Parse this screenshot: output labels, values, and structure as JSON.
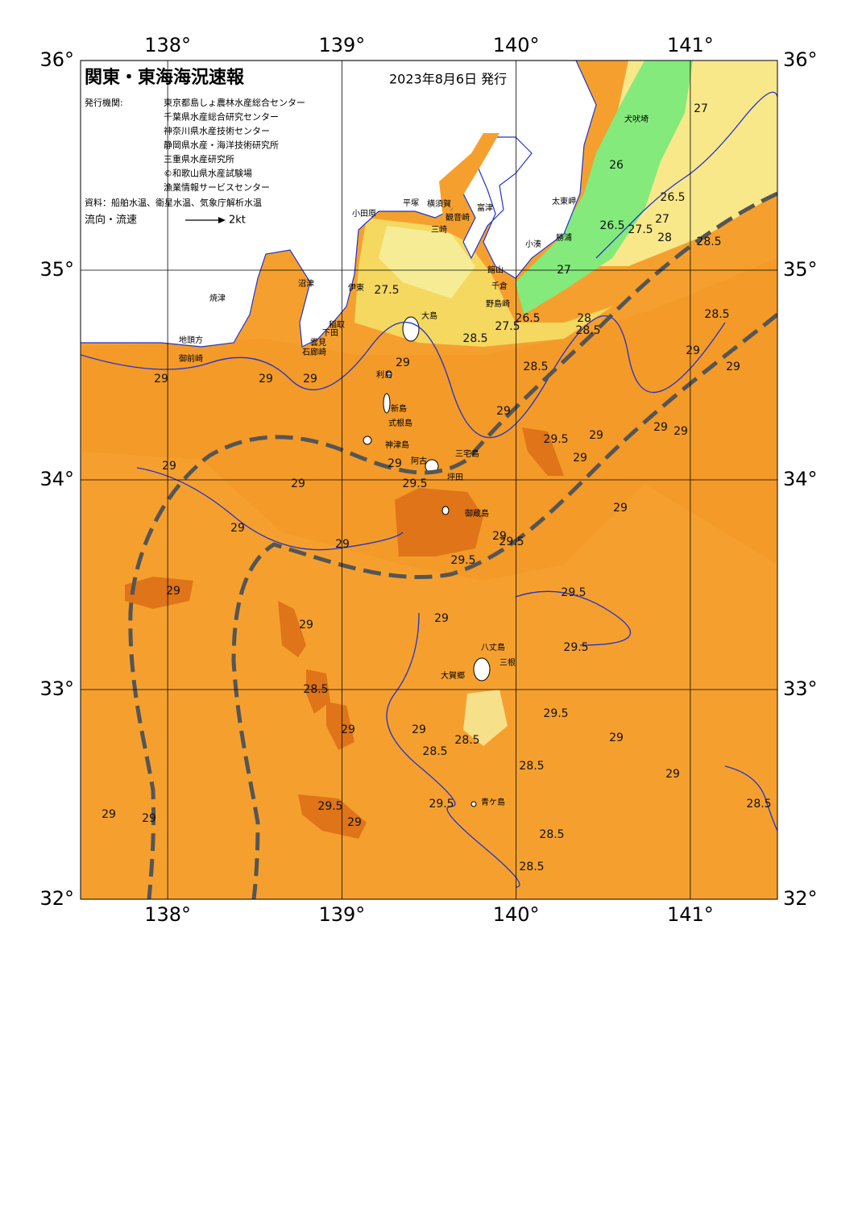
{
  "header": {
    "title": "関東・東海海況速報",
    "date": "2023年8月6日 発行"
  },
  "issuers": {
    "label": "発行機関:",
    "names": [
      "東京都島しょ農林水産総合センター",
      "千葉県水産総合研究センター",
      "神奈川県水産技術センター",
      "静岡県水産・海洋技術研究所",
      "三重県水産研究所",
      "©和歌山県水産試験場",
      "漁業情報サービスセンター"
    ]
  },
  "source": "資料：船舶水温、衛星水温、気象庁解析水温",
  "legend": {
    "label": "流向・流速",
    "unit": "2kt"
  },
  "axes": {
    "lonlim": [
      137.5,
      141.5
    ],
    "latlim": [
      32,
      36
    ],
    "lon_ticks": [
      {
        "value": 138,
        "label": "138°"
      },
      {
        "value": 139,
        "label": "139°"
      },
      {
        "value": 140,
        "label": "140°"
      },
      {
        "value": 141,
        "label": "141°"
      }
    ],
    "lat_ticks": [
      {
        "value": 32,
        "label": "32°"
      },
      {
        "value": 33,
        "label": "33°"
      },
      {
        "value": 34,
        "label": "34°"
      },
      {
        "value": 35,
        "label": "35°"
      },
      {
        "value": 36,
        "label": "36°"
      }
    ]
  },
  "places": [
    "犬吠埼",
    "太東岬",
    "勝浦",
    "小湊",
    "館山",
    "千倉",
    "野島崎",
    "富津",
    "観音崎",
    "横須賀",
    "平塚",
    "小田原",
    "三崎",
    "伊東",
    "沼津",
    "焼津",
    "大島",
    "稲取",
    "下田",
    "雲見",
    "石廊崎",
    "地頭方",
    "御前崎",
    "利島",
    "新島",
    "式根島",
    "神津島",
    "三宅島",
    "阿古",
    "坪田",
    "御蔵島",
    "八丈島",
    "三根",
    "大賀郷",
    "青ケ島"
  ],
  "contour_labels": [
    27,
    26,
    26.5,
    27,
    26.5,
    27.5,
    28,
    28.5,
    27,
    27.5,
    26.5,
    27.5,
    28,
    28.5,
    28.5,
    28.5,
    28.5,
    29,
    29,
    29,
    29,
    29,
    29,
    29,
    29.5,
    29,
    29,
    29,
    29,
    29,
    29,
    29,
    29.5,
    29,
    29,
    29,
    29,
    29.5,
    29.5,
    29,
    29.5,
    29,
    29,
    29.5,
    28.5,
    29.5,
    29,
    29,
    28.5,
    29,
    28.5,
    28.5,
    29,
    29.5,
    29.5,
    29,
    29,
    29,
    28.5,
    28.5,
    28.5
  ]
}
